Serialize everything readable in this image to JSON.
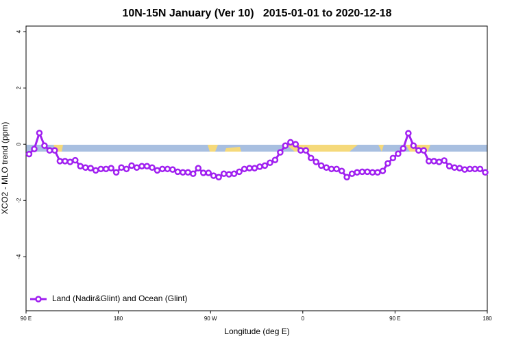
{
  "chart_data": {
    "type": "line",
    "title": "10N-15N January (Ver 10)   2015-01-01 to 2020-12-18",
    "x_label": "Longitude (deg E)",
    "y_label": "XCO2 - MLO trend (ppm)",
    "xlim": [
      90,
      540
    ],
    "xticks": [
      {
        "value": 90,
        "label": "90 E"
      },
      {
        "value": 180,
        "label": "180"
      },
      {
        "value": 270,
        "label": "90 W"
      },
      {
        "value": 360,
        "label": "0"
      },
      {
        "value": 450,
        "label": "90 E"
      },
      {
        "value": 540,
        "label": "180"
      }
    ],
    "ylim": [
      -5.92,
      4.2
    ],
    "yticks": [
      -4,
      -2,
      0,
      2,
      4
    ],
    "legend": "bottomleft",
    "x": [
      93,
      98,
      103,
      108,
      113,
      118,
      123,
      128,
      133,
      138,
      143,
      148,
      153,
      158,
      163,
      168,
      173,
      178,
      183,
      188,
      193,
      198,
      203,
      208,
      213,
      218,
      223,
      228,
      233,
      238,
      243,
      248,
      253,
      258,
      263,
      268,
      273,
      278,
      283,
      288,
      293,
      298,
      303,
      308,
      313,
      318,
      323,
      328,
      333,
      338,
      343,
      348,
      353,
      358,
      363,
      368,
      373,
      378,
      383,
      388,
      393,
      398,
      403,
      408,
      413,
      418,
      423,
      428,
      433,
      438,
      443,
      448,
      453,
      458,
      463,
      468,
      473,
      478,
      483,
      488,
      493,
      498,
      503,
      508,
      513,
      518,
      523,
      528,
      533,
      538
    ],
    "series": [
      {
        "name": "Land (Nadir&Glint) and Ocean (Glint)",
        "color": "#a020f0",
        "values": [
          -0.35,
          -0.17,
          0.4,
          -0.05,
          -0.22,
          -0.22,
          -0.6,
          -0.6,
          -0.63,
          -0.57,
          -0.78,
          -0.83,
          -0.85,
          -0.93,
          -0.88,
          -0.88,
          -0.85,
          -1.0,
          -0.83,
          -0.88,
          -0.76,
          -0.83,
          -0.78,
          -0.78,
          -0.83,
          -0.93,
          -0.88,
          -0.88,
          -0.9,
          -0.98,
          -1.0,
          -1.0,
          -1.05,
          -0.85,
          -1.02,
          -1.02,
          -1.12,
          -1.17,
          -1.05,
          -1.07,
          -1.05,
          -0.98,
          -0.88,
          -0.85,
          -0.85,
          -0.8,
          -0.76,
          -0.66,
          -0.56,
          -0.29,
          -0.05,
          0.07,
          0,
          -0.22,
          -0.22,
          -0.49,
          -0.63,
          -0.76,
          -0.83,
          -0.88,
          -0.88,
          -0.95,
          -1.17,
          -1.05,
          -1.0,
          -0.98,
          -0.98,
          -1.0,
          -1.0,
          -0.95,
          -0.68,
          -0.49,
          -0.34,
          -0.15,
          0.39,
          -0.05,
          -0.22,
          -0.22,
          -0.6,
          -0.6,
          -0.63,
          -0.58,
          -0.78,
          -0.83,
          -0.85,
          -0.9,
          -0.88,
          -0.88,
          -0.88,
          -1.0
        ]
      }
    ]
  }
}
